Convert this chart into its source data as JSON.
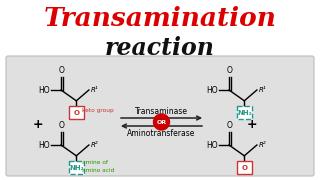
{
  "title_line1": "Transamination",
  "title_line2": "reaction",
  "title_color1": "#DD0000",
  "title_color2": "#111111",
  "bg_color": "#FFFFFF",
  "panel_bg": "#E0E0E0",
  "panel_edge": "#BBBBBB",
  "enzyme_text1": "Transaminase",
  "enzyme_text2": "Aminotransferase",
  "or_text": "OR",
  "keto_label": "keto group",
  "amine_label1": "amine of",
  "amine_label2": "amino acid",
  "keto_box_color": "#CC3333",
  "amine_box_color": "#229988",
  "nh2_box_color_right": "#229988",
  "keto_box_color_right": "#CC3333",
  "arrow_color": "#222222",
  "or_bg": "#CC0000",
  "or_fg": "#FFFFFF",
  "amine_label_color": "#229900"
}
